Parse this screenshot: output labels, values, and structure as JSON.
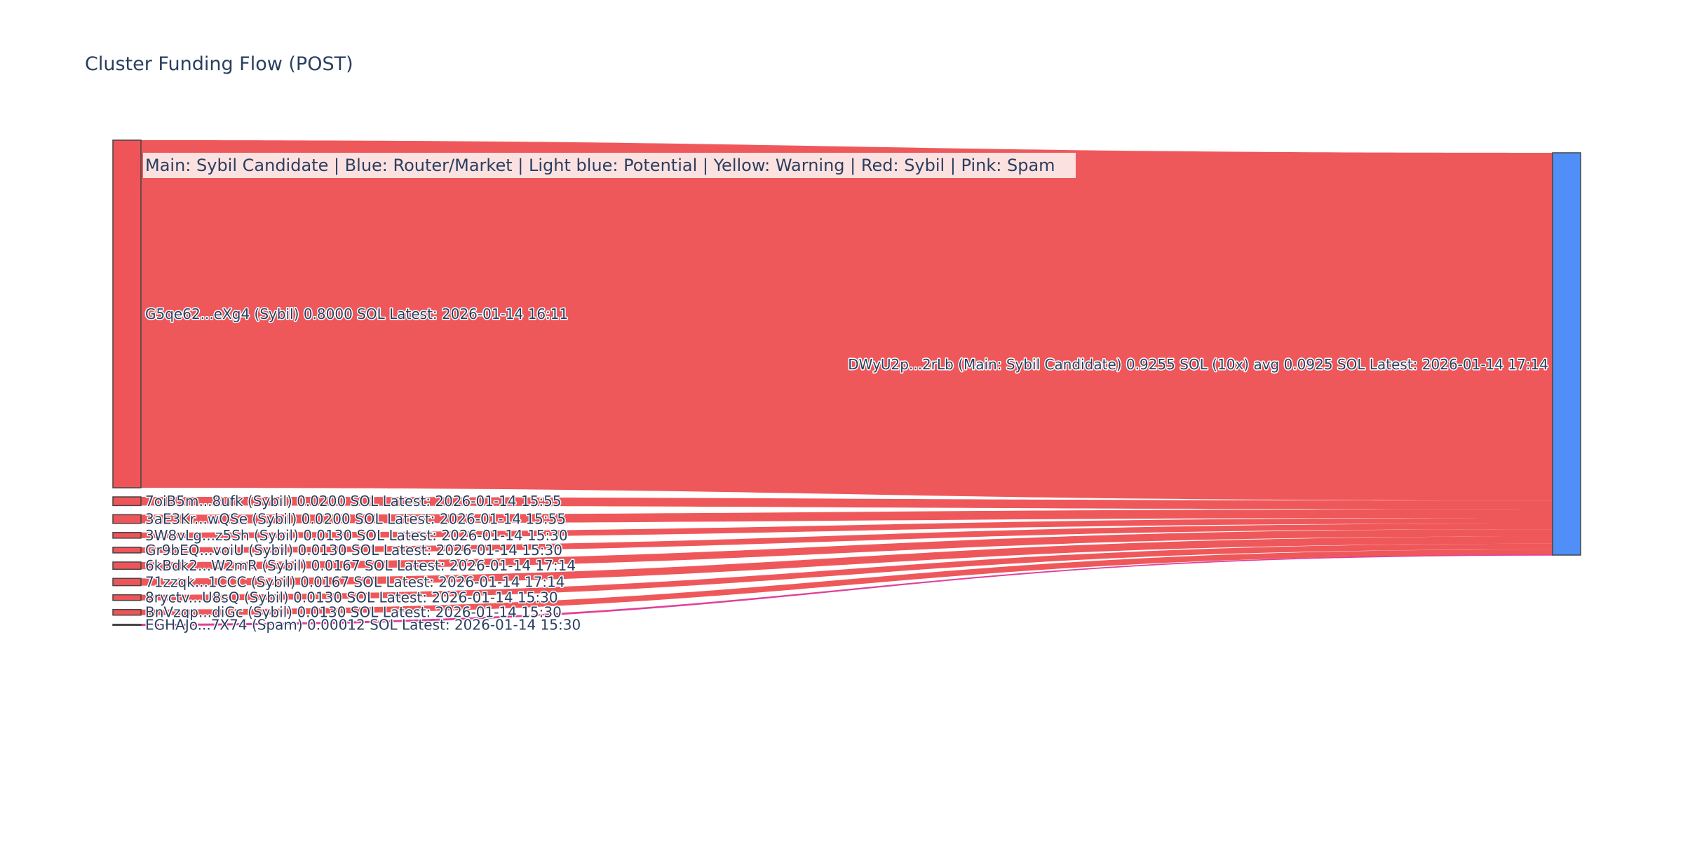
{
  "title": "Cluster Funding Flow (POST)",
  "legend": "Main: Sybil Candidate  |  Blue: Router/Market | Light blue: Potential | Yellow: Warning | Red: Sybil | Pink: Spam",
  "colors": {
    "sybil": "#ef5558",
    "router": "#4f8ff7",
    "spam": "#e0409a",
    "node_border": "#444444",
    "text": "#2a3f5f"
  },
  "chart_data": {
    "type": "sankey",
    "unit": "SOL",
    "target": {
      "label": "DWyU2p...2rLb (Main: Sybil Candidate) 0.9255 SOL (10x) avg 0.0925 SOL Latest: 2026-01-14 17:14",
      "value": 0.9255,
      "category": "router"
    },
    "sources": [
      {
        "label": "G5qe62...eXg4 (Sybil) 0.8000 SOL Latest: 2026-01-14 16:11",
        "value": 0.8,
        "category": "sybil"
      },
      {
        "label": "7oiB5m...8ufk (Sybil) 0.0200 SOL Latest: 2026-01-14 15:55",
        "value": 0.02,
        "category": "sybil"
      },
      {
        "label": "3aE3Kr...wQSe (Sybil) 0.0200 SOL Latest: 2026-01-14 15:55",
        "value": 0.02,
        "category": "sybil"
      },
      {
        "label": "3W8vLg...z5Sh (Sybil) 0.0130 SOL Latest: 2026-01-14 15:30",
        "value": 0.013,
        "category": "sybil"
      },
      {
        "label": "Gr9bEQ...voiU (Sybil) 0.0130 SOL Latest: 2026-01-14 15:30",
        "value": 0.013,
        "category": "sybil"
      },
      {
        "label": "6kBdk2...W2mR (Sybil) 0.0167 SOL Latest: 2026-01-14 17:14",
        "value": 0.0167,
        "category": "sybil"
      },
      {
        "label": "71zzqk...1CCC (Sybil) 0.0167 SOL Latest: 2026-01-14 17:14",
        "value": 0.0167,
        "category": "sybil"
      },
      {
        "label": "8ryctv...U8sQ (Sybil) 0.0130 SOL Latest: 2026-01-14 15:30",
        "value": 0.013,
        "category": "sybil"
      },
      {
        "label": "BnVzqp...diGc (Sybil) 0.0130 SOL Latest: 2026-01-14 15:30",
        "value": 0.013,
        "category": "sybil"
      },
      {
        "label": "EGHAJo...7X74 (Spam) 0.00012 SOL Latest: 2026-01-14 15:30",
        "value": 0.00012,
        "category": "spam"
      }
    ]
  }
}
